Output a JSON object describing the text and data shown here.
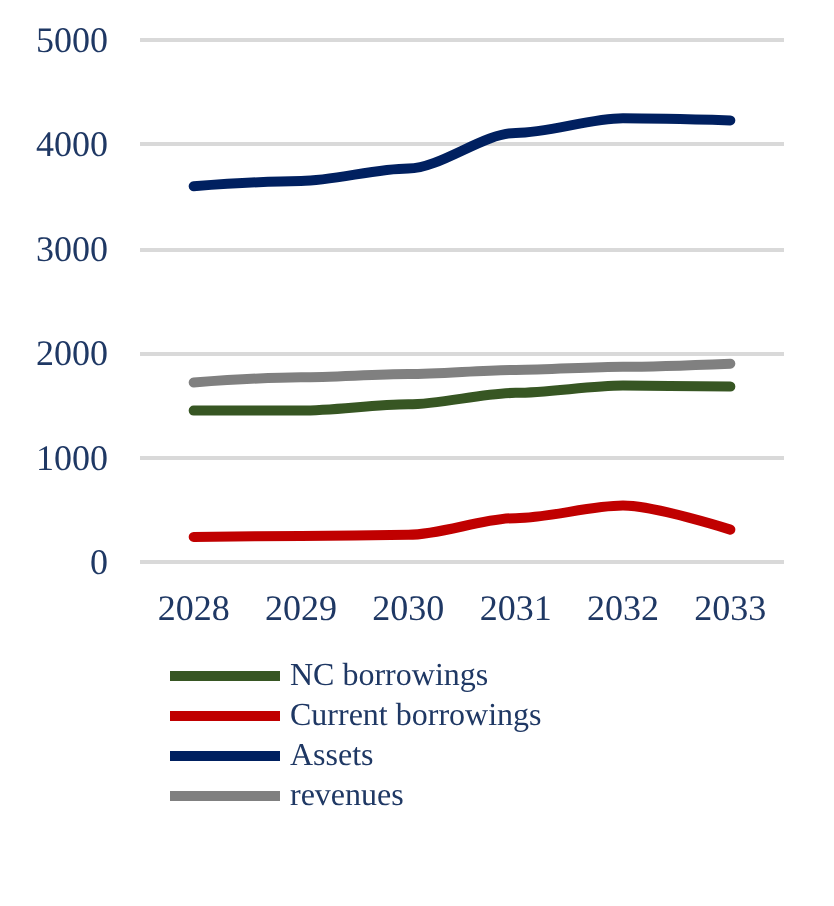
{
  "chart_data": {
    "type": "line",
    "categories": [
      "2028",
      "2029",
      "2030",
      "2031",
      "2032",
      "2033"
    ],
    "series": [
      {
        "name": "NC borrowings",
        "color": "#375623",
        "values": [
          1450,
          1450,
          1510,
          1620,
          1690,
          1680
        ]
      },
      {
        "name": "Current borrowings",
        "color": "#c00000",
        "values": [
          240,
          250,
          260,
          420,
          540,
          310
        ]
      },
      {
        "name": "Assets",
        "color": "#002060",
        "values": [
          3600,
          3650,
          3770,
          4110,
          4250,
          4230
        ]
      },
      {
        "name": "revenues",
        "color": "#808080",
        "values": [
          1720,
          1770,
          1800,
          1840,
          1870,
          1900
        ]
      }
    ],
    "ylim": [
      0,
      5000
    ],
    "yticks": [
      0,
      1000,
      2000,
      3000,
      4000,
      5000
    ],
    "grid": "y",
    "legend": "bottom",
    "marker": "none",
    "line_style": "solid"
  }
}
